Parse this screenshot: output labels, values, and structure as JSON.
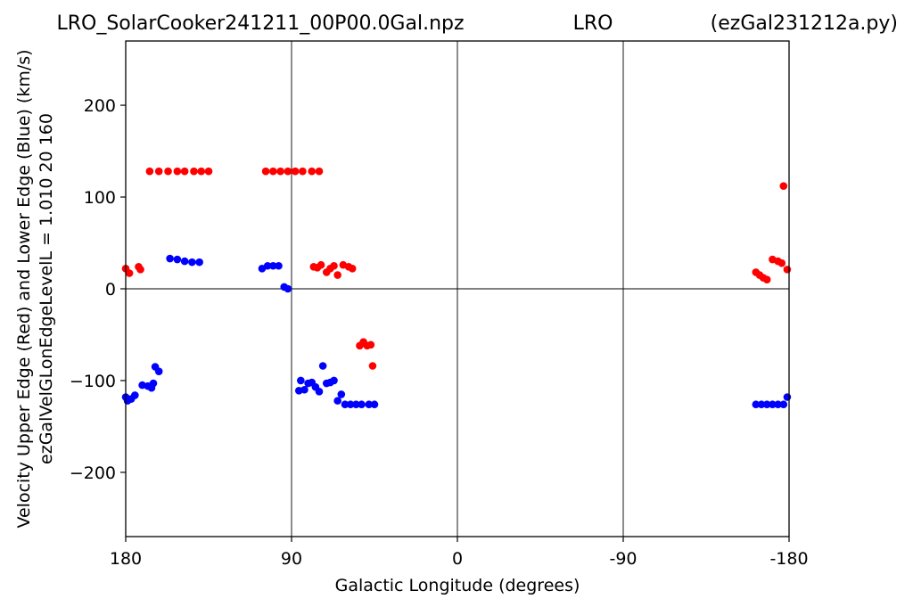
{
  "title": {
    "left": "LRO_SolarCooker241211_00P00.0Gal.npz",
    "center": "LRO",
    "right": "(ezGal231212a.py)"
  },
  "chart_data": {
    "type": "scatter",
    "xlabel": "Galactic Longitude (degrees)",
    "ylabel_line1": "Velocity Upper Edge (Red) and Lower Edge (Blue)  (km/s)",
    "ylabel_line2": "ezGalVelGLonEdgeLevelL = 1.010  20  160",
    "xlim": [
      180,
      -180
    ],
    "ylim": [
      -270,
      270
    ],
    "x_ticks": [
      180,
      90,
      0,
      -90,
      -180
    ],
    "x_tick_labels": [
      "180",
      "90",
      "0",
      "-90",
      "-180"
    ],
    "y_ticks": [
      -200,
      -100,
      0,
      100,
      200
    ],
    "y_tick_labels": [
      "−200",
      "−100",
      "0",
      "100",
      "200"
    ],
    "grid": "vertical lines at x ticks, horizontal line at y = 0",
    "series": [
      {
        "color": "#ff0000",
        "points": [
          [
            180,
            22
          ],
          [
            178,
            17
          ],
          [
            173,
            24
          ],
          [
            172,
            21
          ],
          [
            167,
            128
          ],
          [
            162,
            128
          ],
          [
            157,
            128
          ],
          [
            152,
            128
          ],
          [
            148,
            128
          ],
          [
            143,
            128
          ],
          [
            139,
            128
          ],
          [
            135,
            128
          ],
          [
            104,
            128
          ],
          [
            100,
            128
          ],
          [
            96,
            128
          ],
          [
            92,
            128
          ],
          [
            88,
            128
          ],
          [
            84,
            128
          ],
          [
            79,
            128
          ],
          [
            75,
            128
          ],
          [
            78,
            24
          ],
          [
            76,
            23
          ],
          [
            74,
            26
          ],
          [
            71,
            18
          ],
          [
            69,
            22
          ],
          [
            67,
            25
          ],
          [
            65,
            15
          ],
          [
            62,
            26
          ],
          [
            59,
            24
          ],
          [
            57,
            22
          ],
          [
            53,
            -62
          ],
          [
            51,
            -58
          ],
          [
            49,
            -62
          ],
          [
            47,
            -61
          ],
          [
            46,
            -84
          ],
          [
            -162,
            18
          ],
          [
            -164,
            15
          ],
          [
            -166,
            12
          ],
          [
            -168,
            10
          ],
          [
            -171,
            32
          ],
          [
            -174,
            30
          ],
          [
            -176,
            28
          ],
          [
            -177,
            112
          ],
          [
            -179,
            21
          ]
        ]
      },
      {
        "color": "#0000ff",
        "points": [
          [
            180,
            -118
          ],
          [
            179,
            -122
          ],
          [
            177,
            -120
          ],
          [
            175,
            -116
          ],
          [
            171,
            -105
          ],
          [
            168,
            -106
          ],
          [
            166,
            -108
          ],
          [
            165,
            -103
          ],
          [
            164,
            -85
          ],
          [
            162,
            -90
          ],
          [
            156,
            33
          ],
          [
            152,
            32
          ],
          [
            148,
            30
          ],
          [
            144,
            29
          ],
          [
            140,
            29
          ],
          [
            106,
            22
          ],
          [
            103,
            25
          ],
          [
            100,
            25
          ],
          [
            97,
            25
          ],
          [
            94,
            2
          ],
          [
            92,
            0
          ],
          [
            86,
            -111
          ],
          [
            85,
            -100
          ],
          [
            83,
            -110
          ],
          [
            81,
            -103
          ],
          [
            79,
            -102
          ],
          [
            77,
            -107
          ],
          [
            75,
            -112
          ],
          [
            73,
            -84
          ],
          [
            71,
            -103
          ],
          [
            69,
            -102
          ],
          [
            67,
            -100
          ],
          [
            65,
            -122
          ],
          [
            63,
            -115
          ],
          [
            61,
            -126
          ],
          [
            58,
            -126
          ],
          [
            55,
            -126
          ],
          [
            52,
            -126
          ],
          [
            48,
            -126
          ],
          [
            45,
            -126
          ],
          [
            -162,
            -126
          ],
          [
            -165,
            -126
          ],
          [
            -168,
            -126
          ],
          [
            -171,
            -126
          ],
          [
            -174,
            -126
          ],
          [
            -177,
            -126
          ],
          [
            -179,
            -118
          ]
        ]
      }
    ]
  }
}
